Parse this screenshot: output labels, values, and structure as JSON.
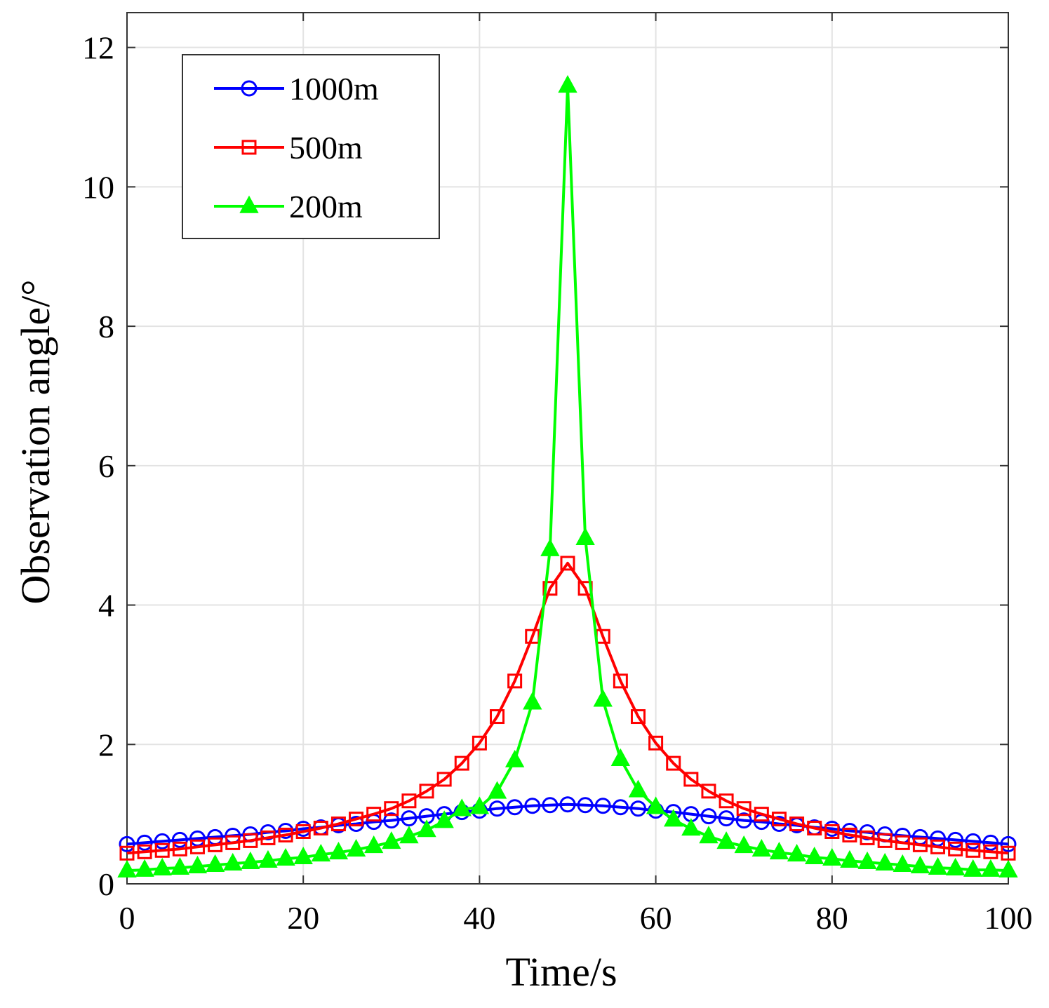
{
  "chart_data": {
    "type": "line",
    "title": "",
    "xlabel": "Time/s",
    "ylabel": "Observation angle/°",
    "xlim": [
      0,
      100
    ],
    "ylim": [
      0,
      12.5
    ],
    "xticks": [
      0,
      20,
      40,
      60,
      80,
      100
    ],
    "yticks": [
      0,
      2,
      4,
      6,
      8,
      10,
      12
    ],
    "grid": true,
    "legend_position": "top-left",
    "x": [
      0,
      2,
      4,
      6,
      8,
      10,
      12,
      14,
      16,
      18,
      20,
      22,
      24,
      26,
      28,
      30,
      32,
      34,
      36,
      38,
      40,
      42,
      44,
      46,
      48,
      50,
      52,
      54,
      56,
      58,
      60,
      62,
      64,
      66,
      68,
      70,
      72,
      74,
      76,
      78,
      80,
      82,
      84,
      86,
      88,
      90,
      92,
      94,
      96,
      98,
      100
    ],
    "series": [
      {
        "name": "1000m",
        "color": "#0000ff",
        "marker": "circle",
        "values": [
          0.57,
          0.59,
          0.61,
          0.63,
          0.65,
          0.67,
          0.69,
          0.71,
          0.74,
          0.76,
          0.79,
          0.81,
          0.84,
          0.86,
          0.89,
          0.91,
          0.94,
          0.97,
          1.0,
          1.03,
          1.05,
          1.08,
          1.1,
          1.12,
          1.13,
          1.14,
          1.13,
          1.12,
          1.1,
          1.08,
          1.05,
          1.03,
          1.0,
          0.97,
          0.94,
          0.91,
          0.89,
          0.86,
          0.84,
          0.81,
          0.79,
          0.76,
          0.74,
          0.71,
          0.69,
          0.67,
          0.65,
          0.63,
          0.61,
          0.59,
          0.57
        ]
      },
      {
        "name": "500m",
        "color": "#ff0000",
        "marker": "square",
        "values": [
          0.44,
          0.46,
          0.48,
          0.5,
          0.53,
          0.56,
          0.59,
          0.62,
          0.66,
          0.7,
          0.75,
          0.8,
          0.86,
          0.93,
          1.0,
          1.08,
          1.19,
          1.33,
          1.5,
          1.73,
          2.02,
          2.4,
          2.91,
          3.55,
          4.24,
          4.6,
          4.24,
          3.55,
          2.91,
          2.4,
          2.02,
          1.73,
          1.5,
          1.33,
          1.19,
          1.08,
          1.0,
          0.93,
          0.86,
          0.8,
          0.75,
          0.7,
          0.66,
          0.62,
          0.59,
          0.56,
          0.53,
          0.5,
          0.48,
          0.46,
          0.44
        ]
      },
      {
        "name": "200m",
        "color": "#00ff00",
        "marker": "triangle",
        "values": [
          0.19,
          0.2,
          0.22,
          0.23,
          0.25,
          0.27,
          0.29,
          0.31,
          0.33,
          0.36,
          0.38,
          0.42,
          0.45,
          0.49,
          0.54,
          0.6,
          0.68,
          0.77,
          0.9,
          1.07,
          1.1,
          1.32,
          1.77,
          2.6,
          4.8,
          11.45,
          4.96,
          2.64,
          1.79,
          1.34,
          1.1,
          0.92,
          0.79,
          0.68,
          0.6,
          0.54,
          0.49,
          0.45,
          0.42,
          0.38,
          0.36,
          0.33,
          0.31,
          0.29,
          0.27,
          0.25,
          0.23,
          0.22,
          0.2,
          0.2,
          0.19
        ]
      }
    ]
  }
}
